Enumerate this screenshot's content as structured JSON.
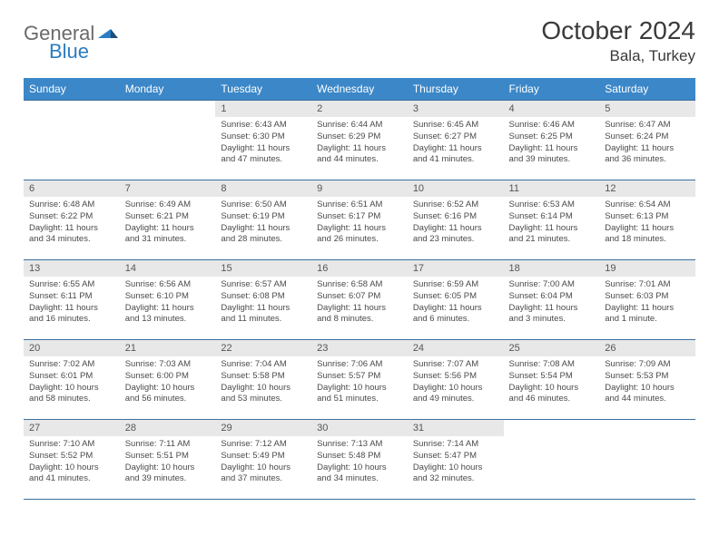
{
  "logo": {
    "general": "General",
    "blue": "Blue"
  },
  "title": "October 2024",
  "location": "Bala, Turkey",
  "colors": {
    "header_bg": "#3b87c8",
    "header_text": "#ffffff",
    "daynum_bg": "#e8e8e8",
    "border": "#3b6fa0",
    "body_text": "#4a4a4a",
    "logo_gray": "#6a6a6a",
    "logo_blue": "#2b7cc0"
  },
  "day_names": [
    "Sunday",
    "Monday",
    "Tuesday",
    "Wednesday",
    "Thursday",
    "Friday",
    "Saturday"
  ],
  "weeks": [
    [
      {
        "n": "",
        "sr": "",
        "ss": "",
        "dl": ""
      },
      {
        "n": "",
        "sr": "",
        "ss": "",
        "dl": ""
      },
      {
        "n": "1",
        "sr": "Sunrise: 6:43 AM",
        "ss": "Sunset: 6:30 PM",
        "dl": "Daylight: 11 hours and 47 minutes."
      },
      {
        "n": "2",
        "sr": "Sunrise: 6:44 AM",
        "ss": "Sunset: 6:29 PM",
        "dl": "Daylight: 11 hours and 44 minutes."
      },
      {
        "n": "3",
        "sr": "Sunrise: 6:45 AM",
        "ss": "Sunset: 6:27 PM",
        "dl": "Daylight: 11 hours and 41 minutes."
      },
      {
        "n": "4",
        "sr": "Sunrise: 6:46 AM",
        "ss": "Sunset: 6:25 PM",
        "dl": "Daylight: 11 hours and 39 minutes."
      },
      {
        "n": "5",
        "sr": "Sunrise: 6:47 AM",
        "ss": "Sunset: 6:24 PM",
        "dl": "Daylight: 11 hours and 36 minutes."
      }
    ],
    [
      {
        "n": "6",
        "sr": "Sunrise: 6:48 AM",
        "ss": "Sunset: 6:22 PM",
        "dl": "Daylight: 11 hours and 34 minutes."
      },
      {
        "n": "7",
        "sr": "Sunrise: 6:49 AM",
        "ss": "Sunset: 6:21 PM",
        "dl": "Daylight: 11 hours and 31 minutes."
      },
      {
        "n": "8",
        "sr": "Sunrise: 6:50 AM",
        "ss": "Sunset: 6:19 PM",
        "dl": "Daylight: 11 hours and 28 minutes."
      },
      {
        "n": "9",
        "sr": "Sunrise: 6:51 AM",
        "ss": "Sunset: 6:17 PM",
        "dl": "Daylight: 11 hours and 26 minutes."
      },
      {
        "n": "10",
        "sr": "Sunrise: 6:52 AM",
        "ss": "Sunset: 6:16 PM",
        "dl": "Daylight: 11 hours and 23 minutes."
      },
      {
        "n": "11",
        "sr": "Sunrise: 6:53 AM",
        "ss": "Sunset: 6:14 PM",
        "dl": "Daylight: 11 hours and 21 minutes."
      },
      {
        "n": "12",
        "sr": "Sunrise: 6:54 AM",
        "ss": "Sunset: 6:13 PM",
        "dl": "Daylight: 11 hours and 18 minutes."
      }
    ],
    [
      {
        "n": "13",
        "sr": "Sunrise: 6:55 AM",
        "ss": "Sunset: 6:11 PM",
        "dl": "Daylight: 11 hours and 16 minutes."
      },
      {
        "n": "14",
        "sr": "Sunrise: 6:56 AM",
        "ss": "Sunset: 6:10 PM",
        "dl": "Daylight: 11 hours and 13 minutes."
      },
      {
        "n": "15",
        "sr": "Sunrise: 6:57 AM",
        "ss": "Sunset: 6:08 PM",
        "dl": "Daylight: 11 hours and 11 minutes."
      },
      {
        "n": "16",
        "sr": "Sunrise: 6:58 AM",
        "ss": "Sunset: 6:07 PM",
        "dl": "Daylight: 11 hours and 8 minutes."
      },
      {
        "n": "17",
        "sr": "Sunrise: 6:59 AM",
        "ss": "Sunset: 6:05 PM",
        "dl": "Daylight: 11 hours and 6 minutes."
      },
      {
        "n": "18",
        "sr": "Sunrise: 7:00 AM",
        "ss": "Sunset: 6:04 PM",
        "dl": "Daylight: 11 hours and 3 minutes."
      },
      {
        "n": "19",
        "sr": "Sunrise: 7:01 AM",
        "ss": "Sunset: 6:03 PM",
        "dl": "Daylight: 11 hours and 1 minute."
      }
    ],
    [
      {
        "n": "20",
        "sr": "Sunrise: 7:02 AM",
        "ss": "Sunset: 6:01 PM",
        "dl": "Daylight: 10 hours and 58 minutes."
      },
      {
        "n": "21",
        "sr": "Sunrise: 7:03 AM",
        "ss": "Sunset: 6:00 PM",
        "dl": "Daylight: 10 hours and 56 minutes."
      },
      {
        "n": "22",
        "sr": "Sunrise: 7:04 AM",
        "ss": "Sunset: 5:58 PM",
        "dl": "Daylight: 10 hours and 53 minutes."
      },
      {
        "n": "23",
        "sr": "Sunrise: 7:06 AM",
        "ss": "Sunset: 5:57 PM",
        "dl": "Daylight: 10 hours and 51 minutes."
      },
      {
        "n": "24",
        "sr": "Sunrise: 7:07 AM",
        "ss": "Sunset: 5:56 PM",
        "dl": "Daylight: 10 hours and 49 minutes."
      },
      {
        "n": "25",
        "sr": "Sunrise: 7:08 AM",
        "ss": "Sunset: 5:54 PM",
        "dl": "Daylight: 10 hours and 46 minutes."
      },
      {
        "n": "26",
        "sr": "Sunrise: 7:09 AM",
        "ss": "Sunset: 5:53 PM",
        "dl": "Daylight: 10 hours and 44 minutes."
      }
    ],
    [
      {
        "n": "27",
        "sr": "Sunrise: 7:10 AM",
        "ss": "Sunset: 5:52 PM",
        "dl": "Daylight: 10 hours and 41 minutes."
      },
      {
        "n": "28",
        "sr": "Sunrise: 7:11 AM",
        "ss": "Sunset: 5:51 PM",
        "dl": "Daylight: 10 hours and 39 minutes."
      },
      {
        "n": "29",
        "sr": "Sunrise: 7:12 AM",
        "ss": "Sunset: 5:49 PM",
        "dl": "Daylight: 10 hours and 37 minutes."
      },
      {
        "n": "30",
        "sr": "Sunrise: 7:13 AM",
        "ss": "Sunset: 5:48 PM",
        "dl": "Daylight: 10 hours and 34 minutes."
      },
      {
        "n": "31",
        "sr": "Sunrise: 7:14 AM",
        "ss": "Sunset: 5:47 PM",
        "dl": "Daylight: 10 hours and 32 minutes."
      },
      {
        "n": "",
        "sr": "",
        "ss": "",
        "dl": ""
      },
      {
        "n": "",
        "sr": "",
        "ss": "",
        "dl": ""
      }
    ]
  ]
}
